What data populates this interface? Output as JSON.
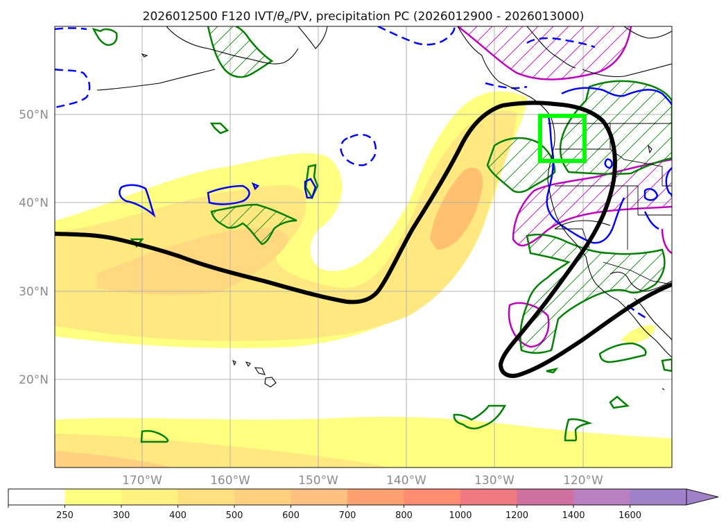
{
  "title": {
    "prefix": "2026012500 F120 IVT/",
    "theta": "θ",
    "theta_sub": "e",
    "suffix": "/PV, precipitation PC (2026012900 - 2026013000)"
  },
  "map": {
    "lat_labels": [
      "50°N",
      "40°N",
      "30°N",
      "20°N"
    ],
    "lon_labels": [
      "170°W",
      "160°W",
      "150°W",
      "140°W",
      "130°W",
      "120°W"
    ],
    "highlight_box_color": "#00ff00"
  },
  "colorbar": {
    "ticks": [
      "250",
      "300",
      "400",
      "500",
      "600",
      "700",
      "800",
      "1000",
      "1200",
      "1400",
      "1600"
    ],
    "colors": [
      "#ffffff",
      "#ffff80",
      "#fff080",
      "#ffe080",
      "#ffd080",
      "#ffc080",
      "#ffa070",
      "#ff8c70",
      "#f07880",
      "#d070a0",
      "#b880c0",
      "#a080c8"
    ]
  },
  "legend_colors": {
    "jet_line": "#000000",
    "precip_contour": "#008000",
    "pv_contour": "#c000c0",
    "theta_contour": "#0000ff"
  }
}
